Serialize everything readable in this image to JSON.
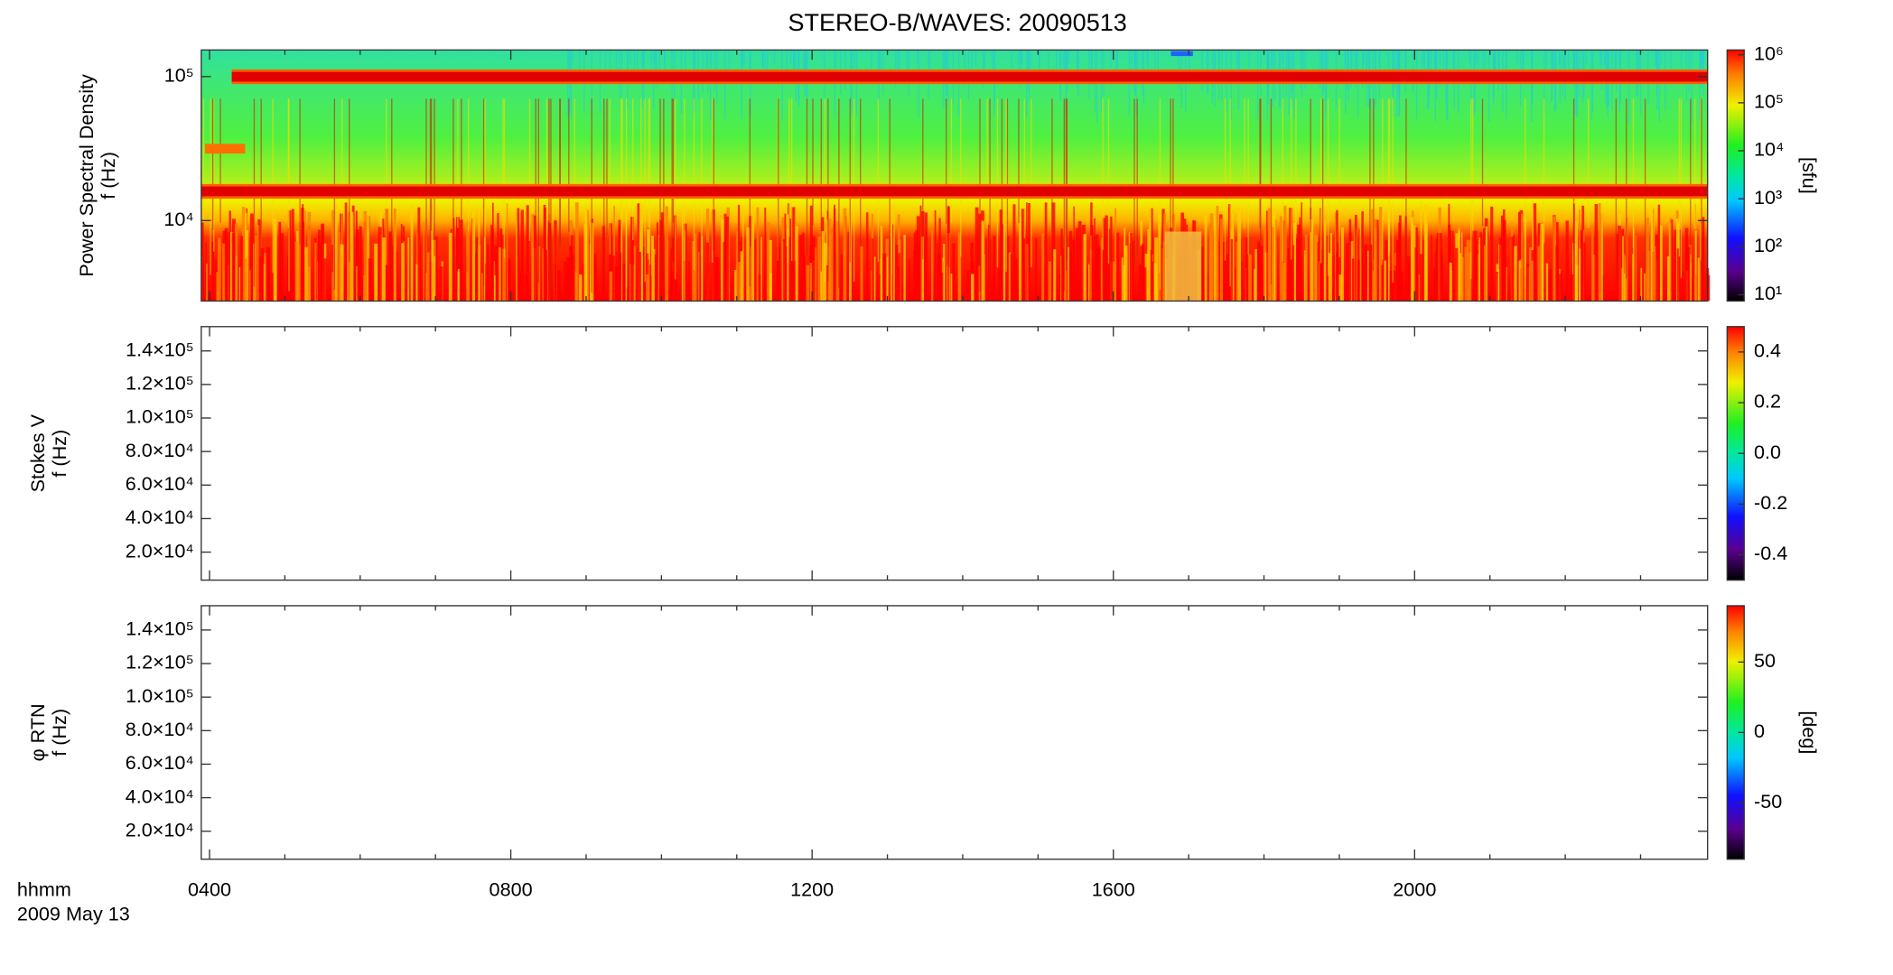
{
  "chart_data": {
    "type": "spectrogram",
    "title": "STEREO-B/WAVES: 20090513",
    "xlim": [
      3.89,
      23.89
    ],
    "xticks": [
      {
        "value": 4,
        "label": "0400"
      },
      {
        "value": 8,
        "label": "0800"
      },
      {
        "value": 12,
        "label": "1200"
      },
      {
        "value": 16,
        "label": "1600"
      },
      {
        "value": 20,
        "label": "2000"
      }
    ],
    "xminor_ticks": [
      5,
      6,
      7,
      9,
      10,
      11,
      13,
      14,
      15,
      17,
      18,
      19,
      21,
      22,
      23
    ],
    "xlabel": [
      "hhmm",
      "2009 May 13"
    ],
    "panels": [
      {
        "ylabel": [
          "Power Spectral Density",
          "f (Hz)"
        ],
        "ylog": true,
        "filled": true,
        "ylim": [
          2760,
          153000
        ],
        "yticks": [
          {
            "value": 10000,
            "label": "10⁴"
          },
          {
            "value": 100000,
            "label": "10⁵"
          }
        ],
        "colorbar": {
          "log": true,
          "lim": [
            7.4,
            1260000
          ],
          "label": "[sfu]",
          "ticks": [
            {
              "value": 10,
              "label": "10¹"
            },
            {
              "value": 100,
              "label": "10²"
            },
            {
              "value": 1000,
              "label": "10³"
            },
            {
              "value": 10000,
              "label": "10⁴"
            },
            {
              "value": 100000,
              "label": "10⁵"
            },
            {
              "value": 1000000,
              "label": "10⁶"
            }
          ]
        }
      },
      {
        "ylabel": [
          "Stokes V",
          "f (Hz)"
        ],
        "ylog": false,
        "filled": false,
        "ylim": [
          3300,
          154500
        ],
        "yticks": [
          {
            "value": 20000,
            "label": "2.0×10⁴"
          },
          {
            "value": 40000,
            "label": "4.0×10⁴"
          },
          {
            "value": 60000,
            "label": "6.0×10⁴"
          },
          {
            "value": 80000,
            "label": "8.0×10⁴"
          },
          {
            "value": 100000,
            "label": "1.0×10⁵"
          },
          {
            "value": 120000,
            "label": "1.2×10⁵"
          },
          {
            "value": 140000,
            "label": "1.4×10⁵"
          }
        ],
        "colorbar": {
          "log": false,
          "lim": [
            -0.5,
            0.5
          ],
          "ticks": [
            {
              "value": -0.4,
              "label": "-0.4"
            },
            {
              "value": -0.2,
              "label": "-0.2"
            },
            {
              "value": 0,
              "label": "0.0"
            },
            0.2,
            0.4
          ]
        }
      },
      {
        "ylabel": [
          "φ RTN",
          "f (Hz)"
        ],
        "ylog": false,
        "filled": false,
        "ylim": [
          3300,
          154500
        ],
        "yticks": [
          {
            "value": 20000,
            "label": "2.0×10⁴"
          },
          {
            "value": 40000,
            "label": "4.0×10⁴"
          },
          {
            "value": 60000,
            "label": "6.0×10⁴"
          },
          {
            "value": 80000,
            "label": "8.0×10⁴"
          },
          {
            "value": 100000,
            "label": "1.0×10⁵"
          },
          {
            "value": 120000,
            "label": "1.2×10⁵"
          },
          {
            "value": 140000,
            "label": "1.4×10⁵"
          }
        ],
        "colorbar": {
          "log": false,
          "lim": [
            -90,
            90
          ],
          "label": "[deg]",
          "ticks": [
            -50,
            0,
            50
          ]
        }
      }
    ]
  }
}
